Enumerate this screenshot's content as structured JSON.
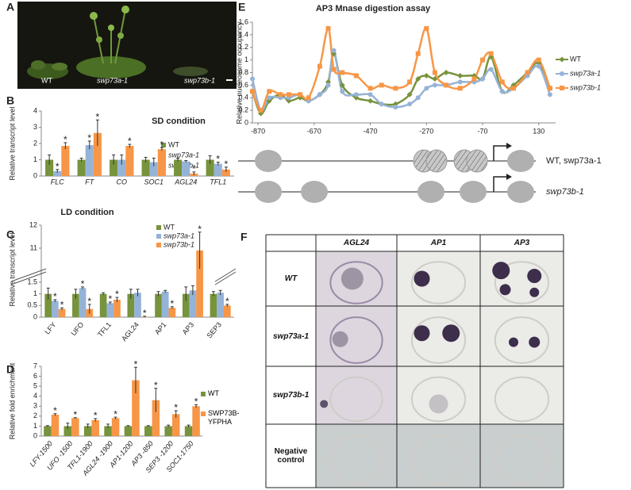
{
  "panel_a": {
    "letter": "A",
    "labels": [
      "WT",
      "swp73a-1",
      "swp73b-1"
    ]
  },
  "chart_data": [
    {
      "type": "bar",
      "panel": "B",
      "title": "SD condition",
      "y_label": "Relative transcript level",
      "categories": [
        "FLC",
        "FT",
        "CO",
        "SOC1",
        "AGL24",
        "TFL1"
      ],
      "series": [
        {
          "name": "WT",
          "color": "#77933c",
          "values": [
            1,
            1,
            1,
            1,
            1,
            1
          ],
          "errors": [
            0.3,
            0.1,
            0.3,
            0.15,
            0.1,
            0.25
          ]
        },
        {
          "name": "swp73a-1",
          "color": "#95b3d7",
          "values": [
            0.3,
            1.9,
            1.0,
            0.85,
            0.9,
            0.75
          ],
          "errors": [
            0.1,
            0.25,
            0.3,
            0.25,
            0.05,
            0.1
          ],
          "annotations": [
            "*",
            "*",
            null,
            null,
            null,
            "*"
          ]
        },
        {
          "name": "swp73b-1",
          "color": "#f79646",
          "values": [
            1.85,
            2.65,
            1.85,
            1.65,
            0.15,
            0.4
          ],
          "errors": [
            0.2,
            0.8,
            0.1,
            0.1,
            0.1,
            0.15
          ],
          "annotations": [
            "*",
            "*",
            "*",
            "*",
            "*",
            "*"
          ]
        }
      ],
      "ylim": [
        0,
        4
      ],
      "yticks": [
        0,
        1,
        2,
        3,
        4
      ],
      "grid": false
    },
    {
      "type": "bar",
      "panel": "C",
      "title": "LD condition",
      "y_label": "Relative transcript level",
      "categories": [
        "LFY",
        "UFO",
        "TFL1",
        "AGL24",
        "AP1",
        "AP3",
        "SEP3"
      ],
      "series": [
        {
          "name": "WT",
          "color": "#77933c",
          "values": [
            1,
            1,
            1,
            1,
            1,
            1,
            1
          ],
          "errors": [
            0.25,
            0.2,
            0.05,
            0.2,
            0.1,
            0.3,
            0.1
          ]
        },
        {
          "name": "swp73a-1",
          "color": "#95b3d7",
          "values": [
            0.7,
            1.25,
            0.6,
            1.05,
            1.1,
            1.15,
            1.05
          ],
          "errors": [
            0.05,
            0.05,
            0.05,
            0.15,
            0.05,
            0.2,
            0.1
          ],
          "annotations": [
            "*",
            "*",
            "*",
            null,
            null,
            null,
            null
          ]
        },
        {
          "name": "swp73b-1",
          "color": "#f79646",
          "values": [
            0.35,
            0.35,
            0.75,
            0.02,
            0.4,
            10.9,
            0.5
          ],
          "errors": [
            0.05,
            0.2,
            0.1,
            0.02,
            0.05,
            0.8,
            0.05
          ],
          "annotations": [
            "*",
            "*",
            "*",
            "*",
            "*",
            "*",
            "*"
          ]
        }
      ],
      "ylim": [
        0,
        12
      ],
      "ybreak": [
        1.5,
        10
      ],
      "yticks": [
        0,
        0.5,
        1,
        1.5,
        11,
        12
      ],
      "grid": false
    },
    {
      "type": "bar",
      "panel": "D",
      "y_label": "Relative fold enrichment",
      "categories": [
        "LFY-1500",
        "UFO -1500",
        "TFL1-1900",
        "AGL24 -1900",
        "AP1-1200",
        "AP3 -850",
        "SEP3 -1200",
        "SOC1-1750"
      ],
      "series": [
        {
          "name": "WT",
          "color": "#77933c",
          "values": [
            1,
            1,
            1,
            1,
            1,
            1,
            1,
            1
          ],
          "errors": [
            0.05,
            0.3,
            0.2,
            0.2,
            0.05,
            0.05,
            0.1,
            0.1
          ]
        },
        {
          "name": "SWP73B-YFPHA",
          "color": "#f79646",
          "values": [
            2.15,
            1.8,
            1.6,
            1.8,
            5.6,
            3.6,
            2.2,
            3.0
          ],
          "errors": [
            0.1,
            0.05,
            0.15,
            0.1,
            1.3,
            1.2,
            0.35,
            0.15
          ],
          "annotations": [
            "*",
            "*",
            "*",
            "*",
            "*",
            "*",
            "*",
            "*"
          ]
        }
      ],
      "ylim": [
        0,
        7
      ],
      "yticks": [
        0,
        1,
        2,
        3,
        4,
        5,
        6,
        7
      ],
      "grid": false
    },
    {
      "type": "line",
      "panel": "E",
      "title": "AP3 Mnase digestion assay",
      "y_label": "Relative nucleosome occupancy",
      "x": [
        -890,
        -860,
        -830,
        -790,
        -760,
        -720,
        -690,
        -650,
        -620,
        -600,
        -570,
        -520,
        -470,
        -430,
        -380,
        -330,
        -300,
        -270,
        -240,
        -200,
        -150,
        -100,
        -70,
        -40,
        0,
        40,
        90,
        130,
        170
      ],
      "series": [
        {
          "name": "WT",
          "color": "#77933c",
          "values": [
            0.5,
            0.15,
            0.35,
            0.45,
            0.35,
            0.4,
            0.35,
            0.45,
            0.65,
            1.1,
            0.6,
            0.4,
            0.35,
            0.3,
            0.3,
            0.45,
            0.7,
            0.75,
            0.7,
            0.8,
            0.75,
            0.75,
            0.7,
            1.05,
            0.5,
            0.6,
            0.8,
            0.95,
            0.55
          ]
        },
        {
          "name": "swp73a-1",
          "color": "#95b3d7",
          "values": [
            0.7,
            0.2,
            0.4,
            0.4,
            0.4,
            0.45,
            0.35,
            0.45,
            0.6,
            1.15,
            0.5,
            0.45,
            0.45,
            0.3,
            0.25,
            0.3,
            0.4,
            0.55,
            0.6,
            0.6,
            0.65,
            0.65,
            0.7,
            0.85,
            0.5,
            0.55,
            0.75,
            0.9,
            0.45
          ]
        },
        {
          "name": "swp73b-1",
          "color": "#f79646",
          "values": [
            0.5,
            0.2,
            0.5,
            0.45,
            0.45,
            0.45,
            0.4,
            0.9,
            1.5,
            0.85,
            0.8,
            0.75,
            0.55,
            0.6,
            0.55,
            0.65,
            1.1,
            1.5,
            0.8,
            0.6,
            0.55,
            0.7,
            1.0,
            1.1,
            0.65,
            0.55,
            0.8,
            1.0,
            0.55
          ]
        }
      ],
      "xlim": [
        -890,
        190
      ],
      "xticks": [
        -870,
        -670,
        -470,
        -270,
        -70,
        130
      ],
      "ylim": [
        0,
        1.6
      ],
      "yticks": [
        0,
        0.2,
        0.4,
        0.6,
        0.8,
        1,
        1.2,
        1.4,
        1.6
      ],
      "grid": false
    }
  ],
  "panel_e_diagram": {
    "labels": [
      "WT, swp73a-1",
      "swp73b-1"
    ]
  },
  "panel_f": {
    "letter": "F",
    "columns": [
      "AGL24",
      "AP1",
      "AP3"
    ],
    "rows": [
      "WT",
      "swp73a-1",
      "swp73b-1",
      "Negative control"
    ]
  }
}
